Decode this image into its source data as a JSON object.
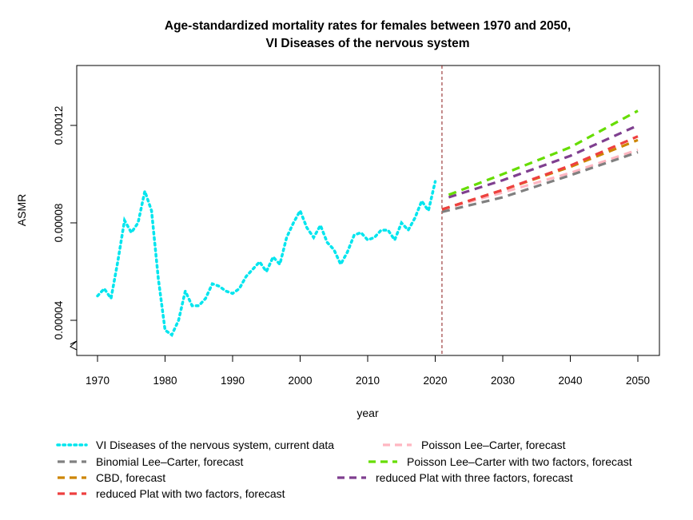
{
  "chart_data": {
    "type": "line",
    "title": "Age-standardized mortality rates for females between 1970 and 2050,",
    "subtitle": "VI Diseases of the nervous system",
    "xlabel": "year",
    "ylabel": "ASMR",
    "xlim": [
      1970,
      2050
    ],
    "ylim": [
      3e-05,
      0.00014
    ],
    "x_ticks": [
      "1970",
      "1980",
      "1990",
      "2000",
      "2010",
      "2020",
      "2030",
      "2040",
      "2050"
    ],
    "y_ticks": [
      "0.00004",
      "0.00008",
      "0.00012"
    ],
    "y_axis_break": true,
    "grid": false,
    "legend_position": "bottom",
    "reference_line": {
      "x": 2021,
      "color": "#8b1a1a",
      "style": "dashed"
    },
    "series": [
      {
        "name": "VI Diseases of the nervous system, current data",
        "color": "#00e5ee",
        "style": "dotted",
        "x": [
          1970,
          1971,
          1972,
          1973,
          1974,
          1975,
          1976,
          1977,
          1978,
          1979,
          1980,
          1981,
          1982,
          1983,
          1984,
          1985,
          1986,
          1987,
          1988,
          1989,
          1990,
          1991,
          1992,
          1993,
          1994,
          1995,
          1996,
          1997,
          1998,
          1999,
          2000,
          2001,
          2002,
          2003,
          2004,
          2005,
          2006,
          2007,
          2008,
          2009,
          2010,
          2011,
          2012,
          2013,
          2014,
          2015,
          2016,
          2017,
          2018,
          2019,
          2020
        ],
        "values": [
          5e-05,
          5.3e-05,
          4.9e-05,
          6.4e-05,
          8.1e-05,
          7.6e-05,
          8e-05,
          9.3e-05,
          8.5e-05,
          5.7e-05,
          3.6e-05,
          3.4e-05,
          4e-05,
          5.2e-05,
          4.6e-05,
          4.6e-05,
          4.9e-05,
          5.5e-05,
          5.4e-05,
          5.2e-05,
          5.1e-05,
          5.3e-05,
          5.8e-05,
          6.1e-05,
          6.4e-05,
          6e-05,
          6.6e-05,
          6.3e-05,
          7.4e-05,
          8e-05,
          8.5e-05,
          7.8e-05,
          7.4e-05,
          7.9e-05,
          7.2e-05,
          6.9e-05,
          6.3e-05,
          6.8e-05,
          7.5e-05,
          7.6e-05,
          7.3e-05,
          7.4e-05,
          7.7e-05,
          7.7e-05,
          7.3e-05,
          8e-05,
          7.7e-05,
          8.2e-05,
          8.9e-05,
          8.5e-05,
          9.7e-05
        ]
      },
      {
        "name": "Poisson Lee–Carter, forecast",
        "color": "#ffb6c1",
        "style": "dashed",
        "x": [
          2021,
          2030,
          2040,
          2050
        ],
        "values": [
          8.55e-05,
          9.25e-05,
          0.0001005,
          0.00011
        ]
      },
      {
        "name": "Binomial Lee–Carter, forecast",
        "color": "#808080",
        "style": "dashed",
        "x": [
          2021,
          2030,
          2040,
          2050
        ],
        "values": [
          8.45e-05,
          9.05e-05,
          9.95e-05,
          0.000109
        ]
      },
      {
        "name": "Poisson Lee–Carter with two factors, forecast",
        "color": "#66dd00",
        "style": "dashed",
        "x": [
          2022,
          2030,
          2040,
          2050
        ],
        "values": [
          9.15e-05,
          0.0001,
          0.000111,
          0.000126
        ]
      },
      {
        "name": "CBD, forecast",
        "color": "#cd8500",
        "style": "dashed",
        "x": [
          2021,
          2030,
          2040,
          2050
        ],
        "values": [
          8.55e-05,
          9.35e-05,
          0.000103,
          0.000114
        ]
      },
      {
        "name": "reduced Plat with three factors, forecast",
        "color": "#7f3f8f",
        "style": "dashed",
        "x": [
          2022,
          2030,
          2040,
          2050
        ],
        "values": [
          9.05e-05,
          9.75e-05,
          0.0001075,
          0.00012
        ]
      },
      {
        "name": "reduced Plat with two factors, forecast",
        "color": "#ee4040",
        "style": "dashed",
        "x": [
          2021,
          2030,
          2040,
          2050
        ],
        "values": [
          8.55e-05,
          9.35e-05,
          0.0001035,
          0.0001155
        ]
      }
    ],
    "legend_order": [
      0,
      1,
      2,
      3,
      4,
      5,
      6
    ]
  }
}
